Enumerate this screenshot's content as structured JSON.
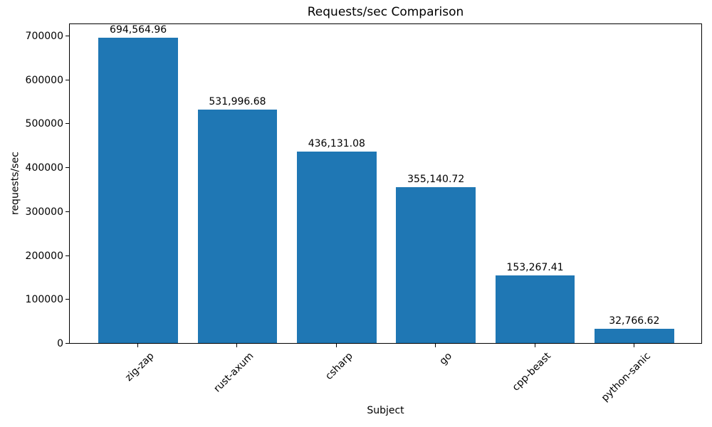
{
  "chart_data": {
    "type": "bar",
    "title": "Requests/sec Comparison",
    "xlabel": "Subject",
    "ylabel": "requests/sec",
    "categories": [
      "zig-zap",
      "rust-axum",
      "csharp",
      "go",
      "cpp-beast",
      "python-sanic"
    ],
    "values": [
      694564.96,
      531996.68,
      436131.08,
      355140.72,
      153267.41,
      32766.62
    ],
    "value_labels": [
      "694,564.96",
      "531,996.68",
      "436,131.08",
      "355,140.72",
      "153,267.41",
      "32,766.62"
    ],
    "yticks": [
      0,
      100000,
      200000,
      300000,
      400000,
      500000,
      600000,
      700000
    ],
    "ytick_labels": [
      "0",
      "100000",
      "200000",
      "300000",
      "400000",
      "500000",
      "600000",
      "700000"
    ],
    "ylim": [
      0,
      729293
    ],
    "xtick_rotation_deg": 45,
    "bar_color": "#1f77b4",
    "bar_width_fraction": 0.8,
    "grid": false,
    "legend": null,
    "background": "#ffffff",
    "spine_color": "#000000"
  }
}
